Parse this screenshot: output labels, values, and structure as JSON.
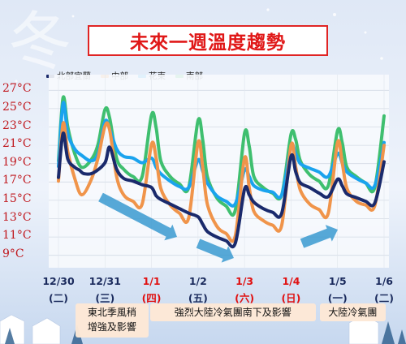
{
  "title": "未來一週溫度趨勢",
  "chart_data": {
    "type": "line",
    "y_unit": "°C",
    "ylim": [
      8,
      28
    ],
    "yticks": [
      "27°C",
      "25°C",
      "23°C",
      "21°C",
      "19°C",
      "17°C",
      "15°C",
      "13°C",
      "11°C",
      "9°C"
    ],
    "x_dates": [
      "12/30",
      "12/31",
      "1/1",
      "1/2",
      "1/3",
      "1/4",
      "1/5",
      "1/6"
    ],
    "x_days": [
      "(二)",
      "(三)",
      "(四)",
      "(五)",
      "(六)",
      "(日)",
      "(一)",
      "(二)"
    ],
    "x_red": [
      false,
      false,
      true,
      false,
      true,
      true,
      false,
      false
    ],
    "grid": true,
    "legend_position": "top-left",
    "series": [
      {
        "name": "北部宜蘭",
        "color": "#1a2a6c",
        "t": [
          0,
          0.1,
          0.2,
          0.35,
          0.45,
          0.55,
          0.75,
          1.0,
          1.1,
          1.25,
          1.4,
          1.6,
          1.8,
          2.0,
          2.1,
          2.2,
          2.4,
          2.6,
          2.8,
          3.0,
          3.1,
          3.2,
          3.4,
          3.6,
          3.8,
          4.0,
          4.1,
          4.2,
          4.4,
          4.6,
          4.8,
          5.0,
          5.1,
          5.2,
          5.4,
          5.6,
          5.8,
          6.0,
          6.1,
          6.2,
          6.4,
          6.6,
          6.8,
          7.0
        ],
        "values": [
          17.5,
          22.3,
          19.5,
          18.6,
          18.3,
          17.9,
          18.0,
          19.1,
          20.8,
          18.4,
          17.4,
          17.1,
          16.7,
          16.4,
          15.5,
          15.1,
          14.6,
          14.1,
          13.6,
          13.2,
          12.4,
          11.6,
          11.0,
          10.6,
          10.3,
          16.2,
          15.6,
          14.8,
          14.1,
          13.7,
          13.6,
          19.8,
          18.1,
          16.9,
          16.4,
          15.8,
          15.4,
          17.3,
          16.6,
          15.7,
          15.3,
          14.9,
          14.7,
          19.2
        ]
      },
      {
        "name": "中部",
        "color": "#f0944a",
        "t": [
          0,
          0.1,
          0.2,
          0.35,
          0.5,
          0.7,
          0.85,
          1.0,
          1.1,
          1.25,
          1.4,
          1.6,
          1.8,
          2.0,
          2.1,
          2.2,
          2.4,
          2.6,
          2.8,
          3.0,
          3.1,
          3.2,
          3.4,
          3.6,
          3.8,
          4.0,
          4.1,
          4.2,
          4.4,
          4.6,
          4.8,
          5.0,
          5.1,
          5.2,
          5.4,
          5.6,
          5.8,
          6.0,
          6.1,
          6.2,
          6.4,
          6.6,
          6.8,
          7.0
        ],
        "values": [
          17.1,
          23.4,
          20.3,
          17.4,
          15.6,
          17.2,
          19.6,
          23.1,
          22.7,
          17.6,
          15.6,
          14.9,
          14.6,
          21.1,
          19.6,
          16.3,
          14.5,
          13.6,
          13.1,
          21.3,
          18.6,
          14.6,
          12.2,
          11.4,
          11.1,
          19.6,
          16.4,
          13.8,
          12.8,
          12.3,
          12.3,
          21.0,
          18.6,
          16.1,
          14.6,
          14.0,
          13.6,
          21.3,
          19.1,
          16.3,
          14.9,
          14.5,
          14.4,
          21.0
        ]
      },
      {
        "name": "花東",
        "color": "#1aa3ee",
        "t": [
          0,
          0.1,
          0.2,
          0.35,
          0.5,
          0.7,
          0.85,
          1.0,
          1.1,
          1.25,
          1.4,
          1.6,
          1.8,
          2.0,
          2.1,
          2.2,
          2.4,
          2.6,
          2.8,
          3.0,
          3.1,
          3.2,
          3.4,
          3.6,
          3.8,
          4.0,
          4.1,
          4.2,
          4.4,
          4.6,
          4.8,
          5.0,
          5.1,
          5.2,
          5.4,
          5.6,
          5.8,
          6.0,
          6.1,
          6.2,
          6.4,
          6.6,
          6.8,
          7.0
        ],
        "values": [
          18.7,
          25.6,
          22.3,
          20.6,
          19.9,
          19.3,
          20.1,
          23.6,
          22.8,
          20.6,
          19.8,
          19.6,
          19.1,
          19.6,
          18.6,
          17.9,
          17.1,
          16.5,
          16.4,
          19.4,
          18.2,
          16.9,
          15.5,
          14.9,
          14.6,
          18.3,
          17.6,
          16.6,
          16.1,
          15.9,
          15.6,
          20.8,
          20.1,
          19.0,
          18.5,
          18.1,
          17.6,
          20.1,
          19.1,
          18.1,
          17.4,
          16.9,
          16.6,
          21.3
        ]
      },
      {
        "name": "南部",
        "color": "#3fbf6f",
        "t": [
          0,
          0.1,
          0.2,
          0.35,
          0.5,
          0.7,
          0.85,
          1.0,
          1.1,
          1.25,
          1.4,
          1.6,
          1.8,
          2.0,
          2.1,
          2.2,
          2.4,
          2.6,
          2.8,
          3.0,
          3.1,
          3.2,
          3.4,
          3.6,
          3.8,
          4.0,
          4.1,
          4.2,
          4.4,
          4.6,
          4.8,
          5.0,
          5.1,
          5.2,
          5.4,
          5.6,
          5.8,
          6.0,
          6.1,
          6.2,
          6.4,
          6.6,
          6.8,
          7.0
        ],
        "values": [
          19.3,
          26.2,
          23.0,
          20.1,
          18.6,
          19.4,
          21.1,
          24.9,
          24.0,
          19.6,
          18.4,
          17.6,
          17.6,
          24.3,
          22.9,
          19.3,
          17.6,
          16.8,
          16.4,
          23.7,
          21.6,
          17.6,
          15.3,
          14.4,
          13.9,
          22.3,
          20.9,
          17.6,
          16.4,
          15.8,
          15.6,
          22.2,
          21.6,
          19.3,
          17.8,
          17.1,
          16.6,
          22.6,
          21.3,
          18.6,
          17.6,
          16.9,
          16.4,
          24.2
        ]
      }
    ],
    "annotations": [
      {
        "text": "東北季風稍\n增強及影響",
        "x_from": 0.4,
        "x_to": 1.9
      },
      {
        "text": "強烈大陸冷氣團南下及影響",
        "x_from": 2.0,
        "x_to": 5.5
      },
      {
        "text": "大陸冷氣團",
        "x_from": 5.65,
        "x_to": 7.0
      }
    ]
  },
  "colors": {
    "title_red": "#e01818",
    "tick_red": "#c0181e",
    "weekend_red": "#e01010",
    "weekday": "#1a2a5c",
    "arrow": "#3a9ad0",
    "note_bg": "#fde8d6"
  }
}
